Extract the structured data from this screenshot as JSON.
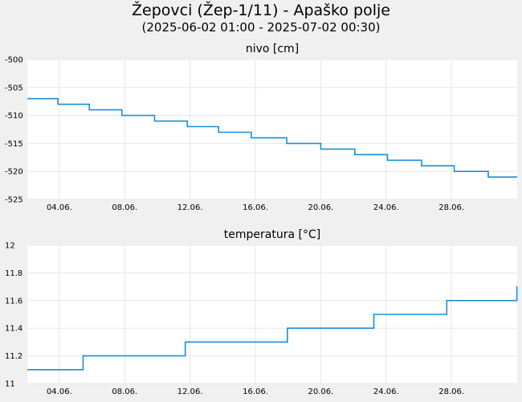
{
  "header": {
    "title": "Žepovci (Žep-1/11) - Apaško polje",
    "subtitle": "(2025-06-02 01:00 - 2025-07-02 00:30)"
  },
  "colors": {
    "line": "#1a8fd6",
    "plot_bg": "#ffffff",
    "page_bg": "#f0f0f0",
    "grid": "#e6e6e6"
  },
  "chart_data": [
    {
      "type": "line",
      "title": "nivo [cm]",
      "x_range": [
        "2025-06-02 01:00",
        "2025-07-02 00:30"
      ],
      "x_ticks": [
        {
          "date": "2025-06-04",
          "label": "04.06."
        },
        {
          "date": "2025-06-08",
          "label": "08.06."
        },
        {
          "date": "2025-06-12",
          "label": "12.06."
        },
        {
          "date": "2025-06-16",
          "label": "16.06."
        },
        {
          "date": "2025-06-20",
          "label": "20.06."
        },
        {
          "date": "2025-06-24",
          "label": "24.06."
        },
        {
          "date": "2025-06-28",
          "label": "28.06."
        }
      ],
      "ylim": [
        -525,
        -500
      ],
      "y_ticks": [
        -500,
        -505,
        -510,
        -515,
        -520,
        -525
      ],
      "grid": true,
      "series": [
        {
          "step": true,
          "points": [
            [
              "2025-06-02 01:00",
              -507
            ],
            [
              "2025-06-03 22:00",
              -508
            ],
            [
              "2025-06-05 20:00",
              -509
            ],
            [
              "2025-06-07 20:00",
              -510
            ],
            [
              "2025-06-09 20:00",
              -511
            ],
            [
              "2025-06-11 20:00",
              -512
            ],
            [
              "2025-06-13 18:00",
              -513
            ],
            [
              "2025-06-15 18:00",
              -514
            ],
            [
              "2025-06-17 22:00",
              -515
            ],
            [
              "2025-06-20 00:00",
              -516
            ],
            [
              "2025-06-22 02:00",
              -517
            ],
            [
              "2025-06-24 02:00",
              -518
            ],
            [
              "2025-06-26 04:00",
              -519
            ],
            [
              "2025-06-28 04:00",
              -520
            ],
            [
              "2025-06-30 06:00",
              -521
            ],
            [
              "2025-07-02 00:30",
              -521
            ]
          ]
        }
      ]
    },
    {
      "type": "line",
      "title": "temperatura [°C]",
      "x_range": [
        "2025-06-02 01:00",
        "2025-07-02 00:30"
      ],
      "x_ticks": [
        {
          "date": "2025-06-04",
          "label": "04.06."
        },
        {
          "date": "2025-06-08",
          "label": "08.06."
        },
        {
          "date": "2025-06-12",
          "label": "12.06."
        },
        {
          "date": "2025-06-16",
          "label": "16.06."
        },
        {
          "date": "2025-06-20",
          "label": "20.06."
        },
        {
          "date": "2025-06-24",
          "label": "24.06."
        },
        {
          "date": "2025-06-28",
          "label": "28.06."
        }
      ],
      "ylim": [
        11,
        12
      ],
      "y_ticks": [
        11,
        11.2,
        11.4,
        11.6,
        11.8,
        12
      ],
      "y_tick_labels": [
        "11",
        "11.2",
        "11.4",
        "11.6",
        "11.8",
        "12"
      ],
      "grid": true,
      "series": [
        {
          "step": true,
          "points": [
            [
              "2025-06-02 01:00",
              11.1
            ],
            [
              "2025-06-05 11:00",
              11.2
            ],
            [
              "2025-06-11 17:00",
              11.3
            ],
            [
              "2025-06-17 23:00",
              11.4
            ],
            [
              "2025-06-23 06:00",
              11.5
            ],
            [
              "2025-06-27 17:00",
              11.6
            ],
            [
              "2025-07-02 00:00",
              11.7
            ],
            [
              "2025-07-02 00:30",
              11.7
            ]
          ]
        }
      ]
    }
  ]
}
